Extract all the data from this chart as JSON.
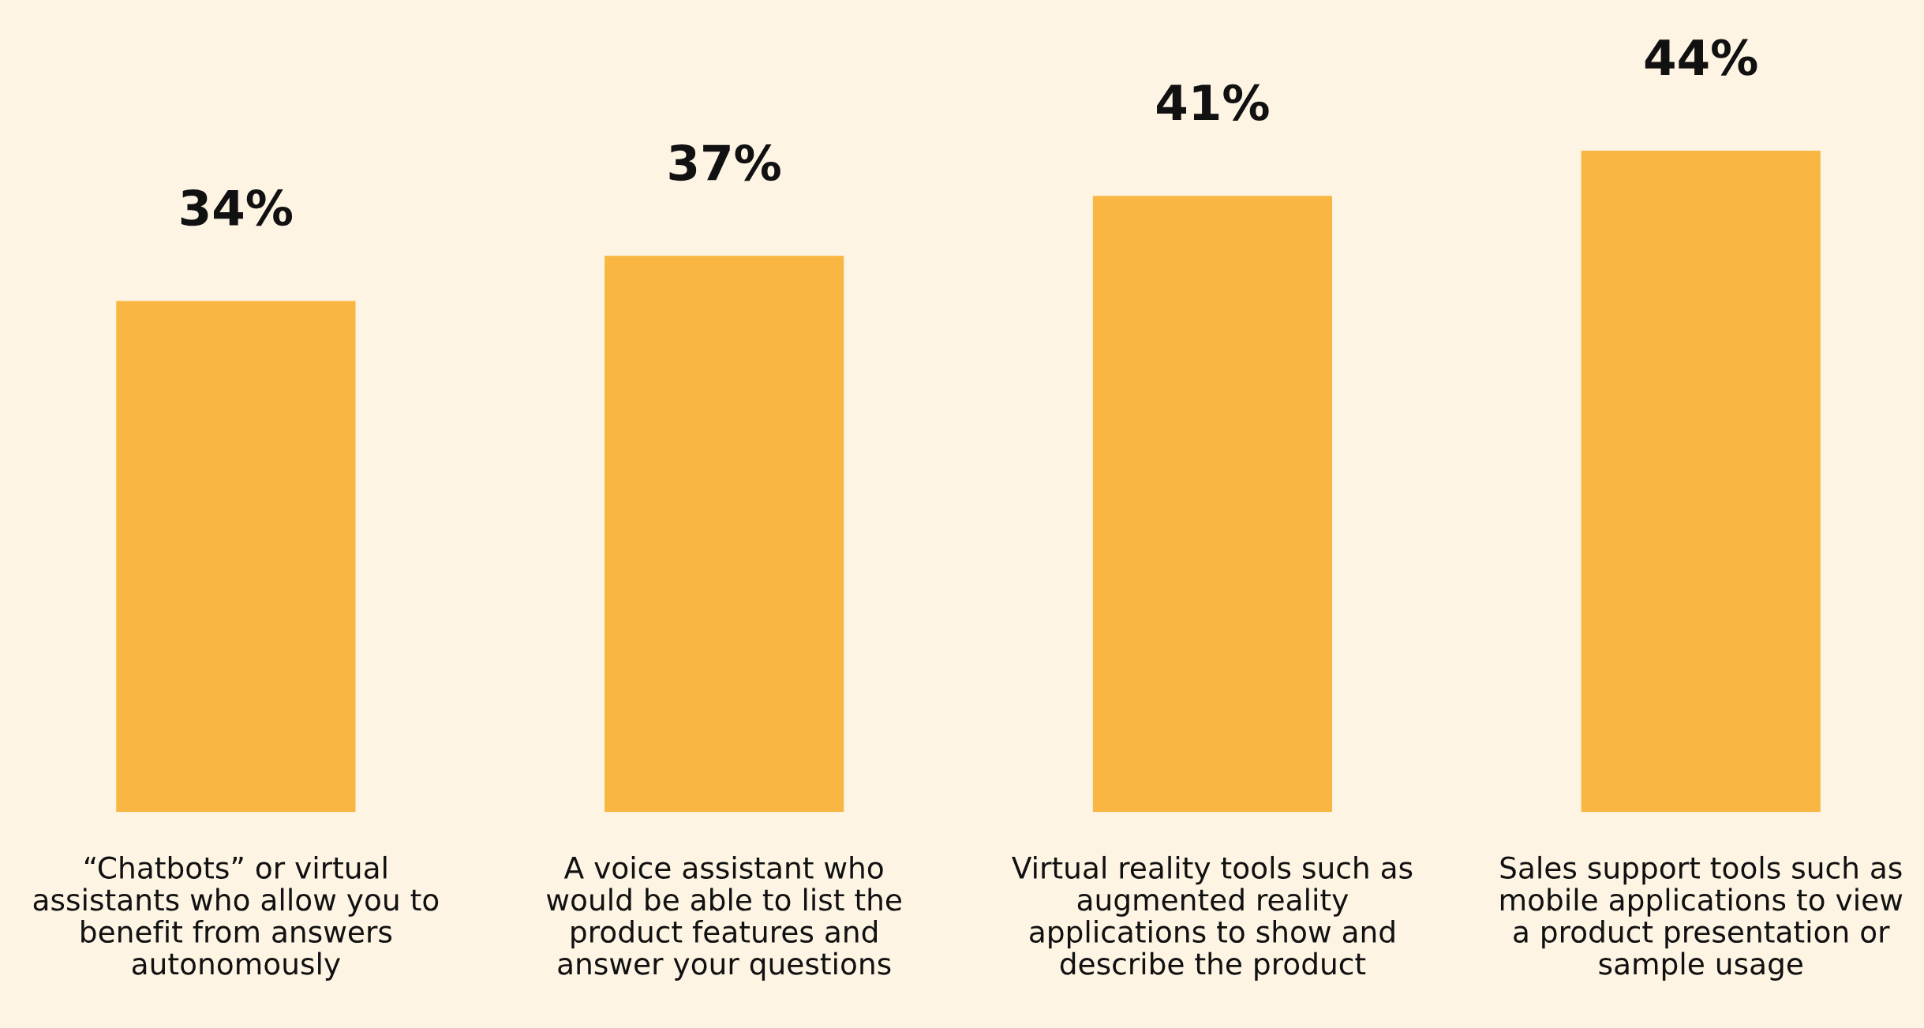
{
  "chart_data": {
    "type": "bar",
    "categories": [
      "“Chatbots” or virtual\nassistants who allow you to\nbenefit from answers\nautonomously",
      "A voice assistant who\nwould be able to list the\nproduct features and\nanswer your questions",
      "Virtual reality tools such as\naugmented reality\napplications to show and\ndescribe the product",
      "Sales support tools such as\nmobile applications to view\na product presentation or\nsample usage"
    ],
    "values": [
      34,
      37,
      41,
      44
    ],
    "value_labels": [
      "34%",
      "37%",
      "41%",
      "44%"
    ],
    "color": "#f9b642"
  }
}
